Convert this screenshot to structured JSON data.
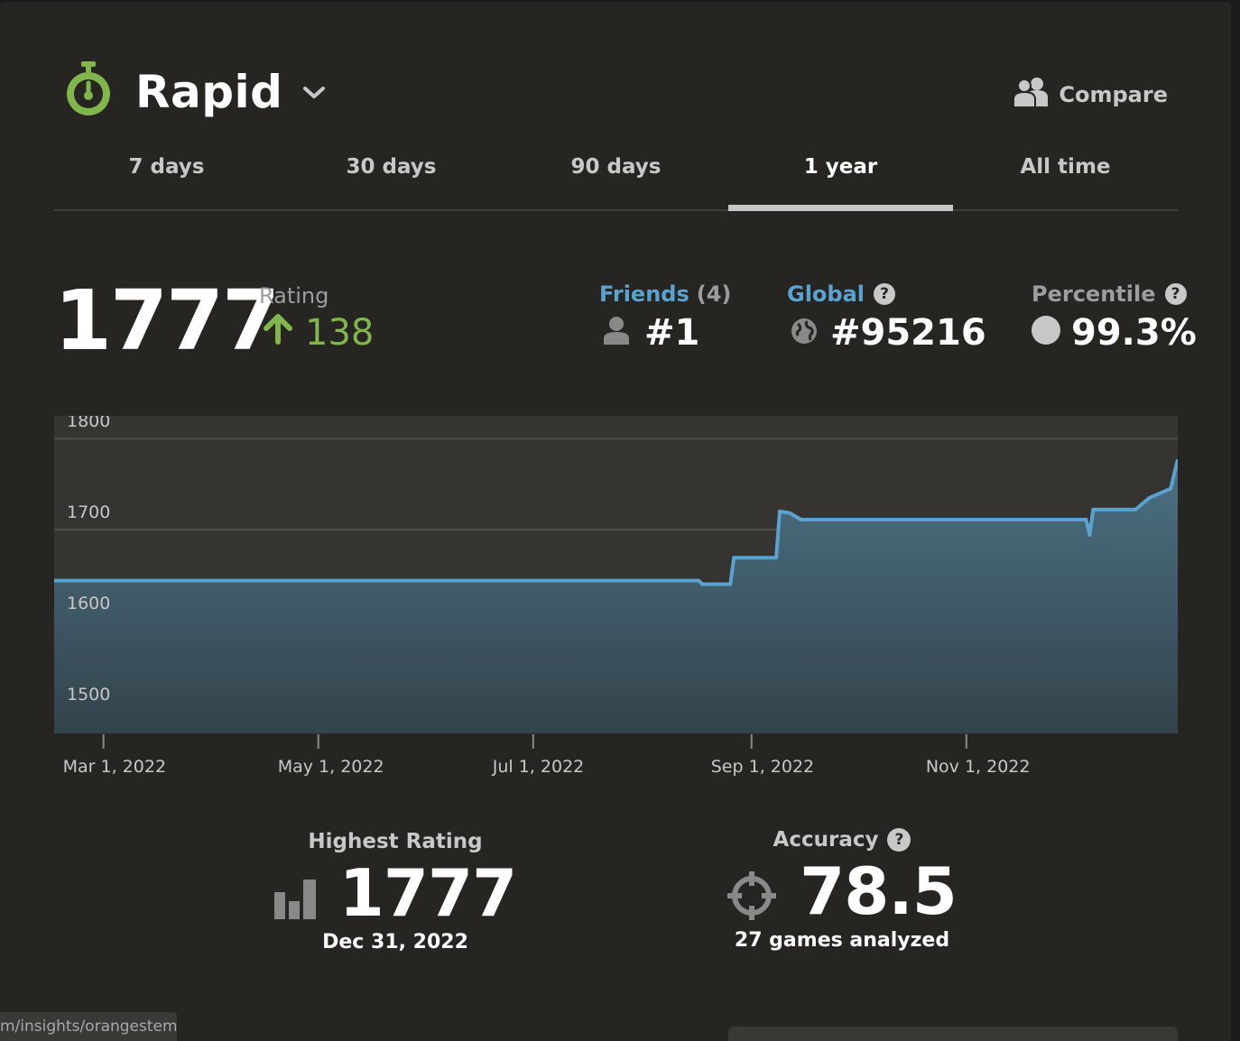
{
  "header": {
    "title": "Rapid",
    "compare_label": "Compare"
  },
  "tabs": [
    {
      "label": "7 days",
      "active": false
    },
    {
      "label": "30 days",
      "active": false
    },
    {
      "label": "90 days",
      "active": false
    },
    {
      "label": "1 year",
      "active": true
    },
    {
      "label": "All time",
      "active": false
    }
  ],
  "rating": {
    "value": "1777",
    "label": "Rating",
    "change": "138"
  },
  "friends": {
    "label": "Friends",
    "count": "(4)",
    "rank": "#1"
  },
  "global": {
    "label": "Global",
    "rank": "#95216"
  },
  "percentile": {
    "label": "Percentile",
    "value": "99.3%"
  },
  "chart_data": {
    "type": "area",
    "ylim": [
      1475,
      1825
    ],
    "y_ticks": [
      1800,
      1700,
      1600,
      1500
    ],
    "x_tick_labels": [
      "Mar 1, 2022",
      "May 1, 2022",
      "Jul 1, 2022",
      "Sep 1, 2022",
      "Nov 1, 2022"
    ],
    "x_tick_dates": [
      "2022-03-01",
      "2022-05-01",
      "2022-07-01",
      "2022-09-01",
      "2022-11-01"
    ],
    "xlim": [
      "2022-02-15",
      "2022-12-31"
    ],
    "grid": true,
    "line_color": "#5aa3d1",
    "points": [
      [
        "2022-02-15",
        1644
      ],
      [
        "2022-08-17",
        1644
      ],
      [
        "2022-08-18",
        1640
      ],
      [
        "2022-08-26",
        1640
      ],
      [
        "2022-08-27",
        1669
      ],
      [
        "2022-09-08",
        1669
      ],
      [
        "2022-09-09",
        1720
      ],
      [
        "2022-09-12",
        1718
      ],
      [
        "2022-09-15",
        1711
      ],
      [
        "2022-12-05",
        1711
      ],
      [
        "2022-12-06",
        1694
      ],
      [
        "2022-12-07",
        1722
      ],
      [
        "2022-12-19",
        1722
      ],
      [
        "2022-12-23",
        1735
      ],
      [
        "2022-12-29",
        1745
      ],
      [
        "2022-12-31",
        1777
      ]
    ]
  },
  "highest": {
    "label": "Highest Rating",
    "value": "1777",
    "date": "Dec 31, 2022"
  },
  "accuracy": {
    "label": "Accuracy",
    "value": "78.5",
    "games": "27 games analyzed"
  },
  "statusbar": {
    "url": "m/insights/orangestem"
  }
}
